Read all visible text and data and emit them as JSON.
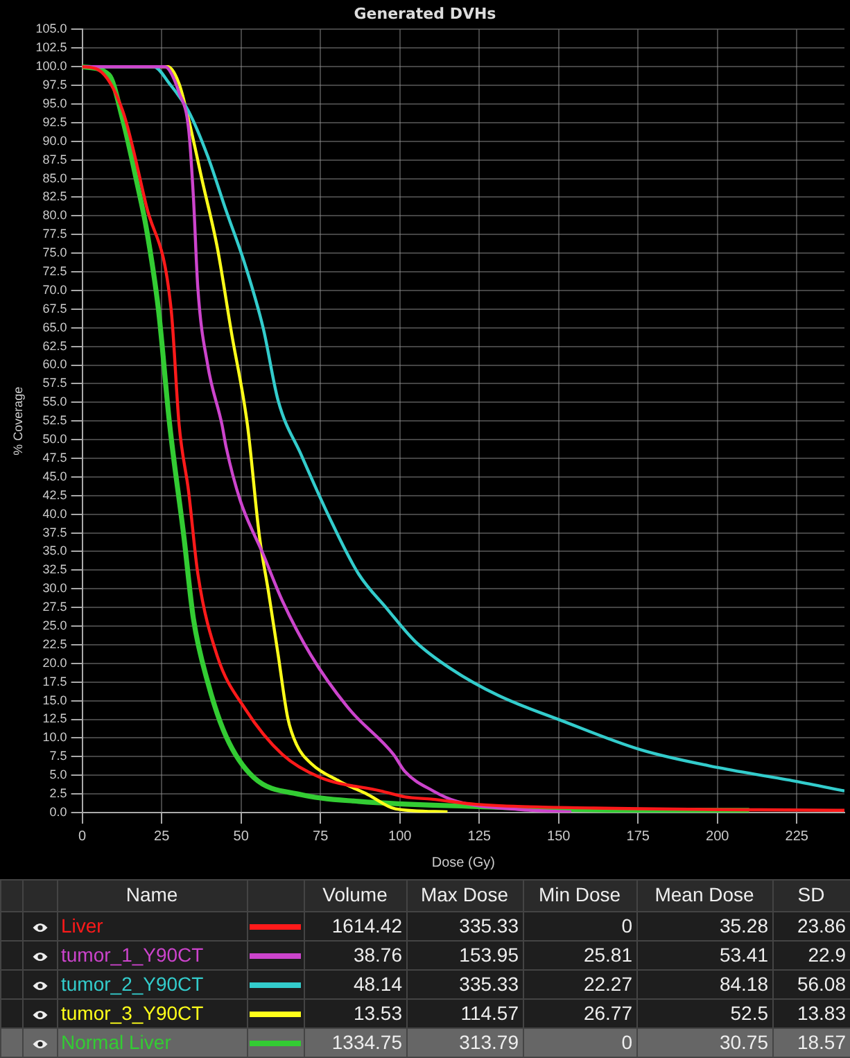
{
  "chart_data": {
    "type": "line",
    "title": "Generated DVHs",
    "xlabel": "Dose (Gy)",
    "ylabel": "% Coverage",
    "xlim": [
      0,
      240
    ],
    "ylim": [
      0,
      105
    ],
    "xticks": [
      0,
      25,
      50,
      75,
      100,
      125,
      150,
      175,
      200,
      225
    ],
    "yticks": [
      {
        "value": 0,
        "label": "0.0"
      },
      {
        "value": 2.5,
        "label": "2.5"
      },
      {
        "value": 5,
        "label": "5.0"
      },
      {
        "value": 7.5,
        "label": "7.5"
      },
      {
        "value": 10,
        "label": "10.0"
      },
      {
        "value": 12.5,
        "label": "12.5"
      },
      {
        "value": 15,
        "label": "15.0"
      },
      {
        "value": 17.5,
        "label": "17.5"
      },
      {
        "value": 20,
        "label": "20.0"
      },
      {
        "value": 22.5,
        "label": "22.5"
      },
      {
        "value": 25,
        "label": "25.0"
      },
      {
        "value": 27.5,
        "label": "27.5"
      },
      {
        "value": 30,
        "label": "30.0"
      },
      {
        "value": 32.5,
        "label": "32.5"
      },
      {
        "value": 35,
        "label": "35.0"
      },
      {
        "value": 37.5,
        "label": "37.5"
      },
      {
        "value": 40,
        "label": "40.0"
      },
      {
        "value": 42.5,
        "label": "42.5"
      },
      {
        "value": 45,
        "label": "45.0"
      },
      {
        "value": 47.5,
        "label": "47.5"
      },
      {
        "value": 50,
        "label": "50.0"
      },
      {
        "value": 52.5,
        "label": "52.5"
      },
      {
        "value": 55,
        "label": "55.0"
      },
      {
        "value": 57.5,
        "label": "57.5"
      },
      {
        "value": 60,
        "label": "60.0"
      },
      {
        "value": 62.5,
        "label": "62.5"
      },
      {
        "value": 65,
        "label": "65.0"
      },
      {
        "value": 67.5,
        "label": "67.5"
      },
      {
        "value": 70,
        "label": "70.0"
      },
      {
        "value": 72.5,
        "label": "72.5"
      },
      {
        "value": 75,
        "label": "75.0"
      },
      {
        "value": 77.5,
        "label": "77.5"
      },
      {
        "value": 80,
        "label": "80.0"
      },
      {
        "value": 82.5,
        "label": "82.5"
      },
      {
        "value": 85,
        "label": "85.0"
      },
      {
        "value": 87.5,
        "label": "87.5"
      },
      {
        "value": 90,
        "label": "90.0"
      },
      {
        "value": 92.5,
        "label": "92.5"
      },
      {
        "value": 95,
        "label": "95.0"
      },
      {
        "value": 97.5,
        "label": "97.5"
      },
      {
        "value": 100,
        "label": "100.0"
      },
      {
        "value": 102.5,
        "label": "102.5"
      },
      {
        "value": 105,
        "label": "105.0"
      }
    ],
    "grid": true,
    "legend": "bottom",
    "marker": "none",
    "line_style": "solid",
    "series": [
      {
        "name": "Liver",
        "color": "#ff1a1a",
        "x": [
          0,
          5,
          12.8,
          20.2,
          28,
          30.5,
          33.5,
          36.4,
          42.5,
          51.3,
          63,
          75,
          94,
          101.6,
          110,
          124,
          161,
          240
        ],
        "values": [
          100,
          99.6,
          94,
          81.3,
          67.4,
          52,
          43,
          32,
          21,
          13.9,
          7.8,
          4.7,
          2.9,
          2.1,
          1.8,
          1.1,
          0.6,
          0.3
        ]
      },
      {
        "name": "tumor_1_Y90CT",
        "color": "#cc44cc",
        "x": [
          0,
          26,
          27.5,
          30.5,
          33.5,
          35,
          36.4,
          39.5,
          44,
          45.3,
          49.7,
          57,
          63,
          72,
          84,
          98,
          101.6,
          110.5,
          118,
          138,
          154
        ],
        "values": [
          100,
          100,
          99.5,
          96.5,
          91.6,
          82.5,
          70.3,
          60,
          52,
          49,
          41.9,
          34.6,
          28.4,
          21.1,
          13.9,
          7.8,
          5.5,
          2.9,
          1.5,
          0.4,
          0.1
        ]
      },
      {
        "name": "tumor_2_Y90CT",
        "color": "#33cccc",
        "x": [
          0,
          22.5,
          27.5,
          33.5,
          39.5,
          45.3,
          51.3,
          57,
          61.7,
          69,
          78,
          87,
          96,
          104.7,
          116,
          131,
          150.5,
          176,
          200.6,
          224.6,
          240
        ],
        "values": [
          100,
          100,
          97.7,
          94,
          88,
          80.7,
          73.4,
          64.9,
          55.2,
          47.9,
          39.4,
          32,
          27.3,
          23,
          19.3,
          15.7,
          12.4,
          8.4,
          6,
          4.2,
          2.9
        ]
      },
      {
        "name": "tumor_3_Y90CT",
        "color": "#ffff1a",
        "x": [
          0,
          27,
          30.5,
          33.5,
          38,
          42.5,
          47,
          52,
          55.8,
          58.6,
          61.7,
          64.7,
          67.5,
          72,
          81,
          90,
          98.6,
          115
        ],
        "values": [
          100,
          100,
          97.7,
          92.9,
          84.3,
          75.8,
          64.3,
          52,
          37,
          29.7,
          21.1,
          12.7,
          9.1,
          6.6,
          4.2,
          2.4,
          0.5,
          0.1
        ]
      },
      {
        "name": "Normal Liver",
        "color": "#33cc33",
        "x": [
          0,
          8.4,
          12.8,
          17.3,
          20.2,
          24,
          27.5,
          32,
          35,
          39.5,
          45.3,
          54,
          69,
          87,
          125,
          175,
          210
        ],
        "values": [
          100,
          98.9,
          92.8,
          84.3,
          78.3,
          67.4,
          52.1,
          37,
          26,
          17.5,
          10.2,
          4.7,
          2.4,
          1.5,
          0.8,
          0.3,
          0.3
        ]
      }
    ],
    "annotations": [
      "Name",
      "Volume",
      "Max Dose",
      "Min Dose",
      "Mean Dose",
      "SD",
      "1614.42",
      "335.33",
      "0",
      "35.28",
      "23.86",
      "38.76",
      "153.95",
      "25.81",
      "53.41",
      "22.9",
      "48.14",
      "335.33",
      "22.27",
      "84.18",
      "56.08",
      "13.53",
      "114.57",
      "26.77",
      "52.5",
      "13.83",
      "1334.75",
      "313.79",
      "0",
      "30.75",
      "18.57"
    ]
  }
}
